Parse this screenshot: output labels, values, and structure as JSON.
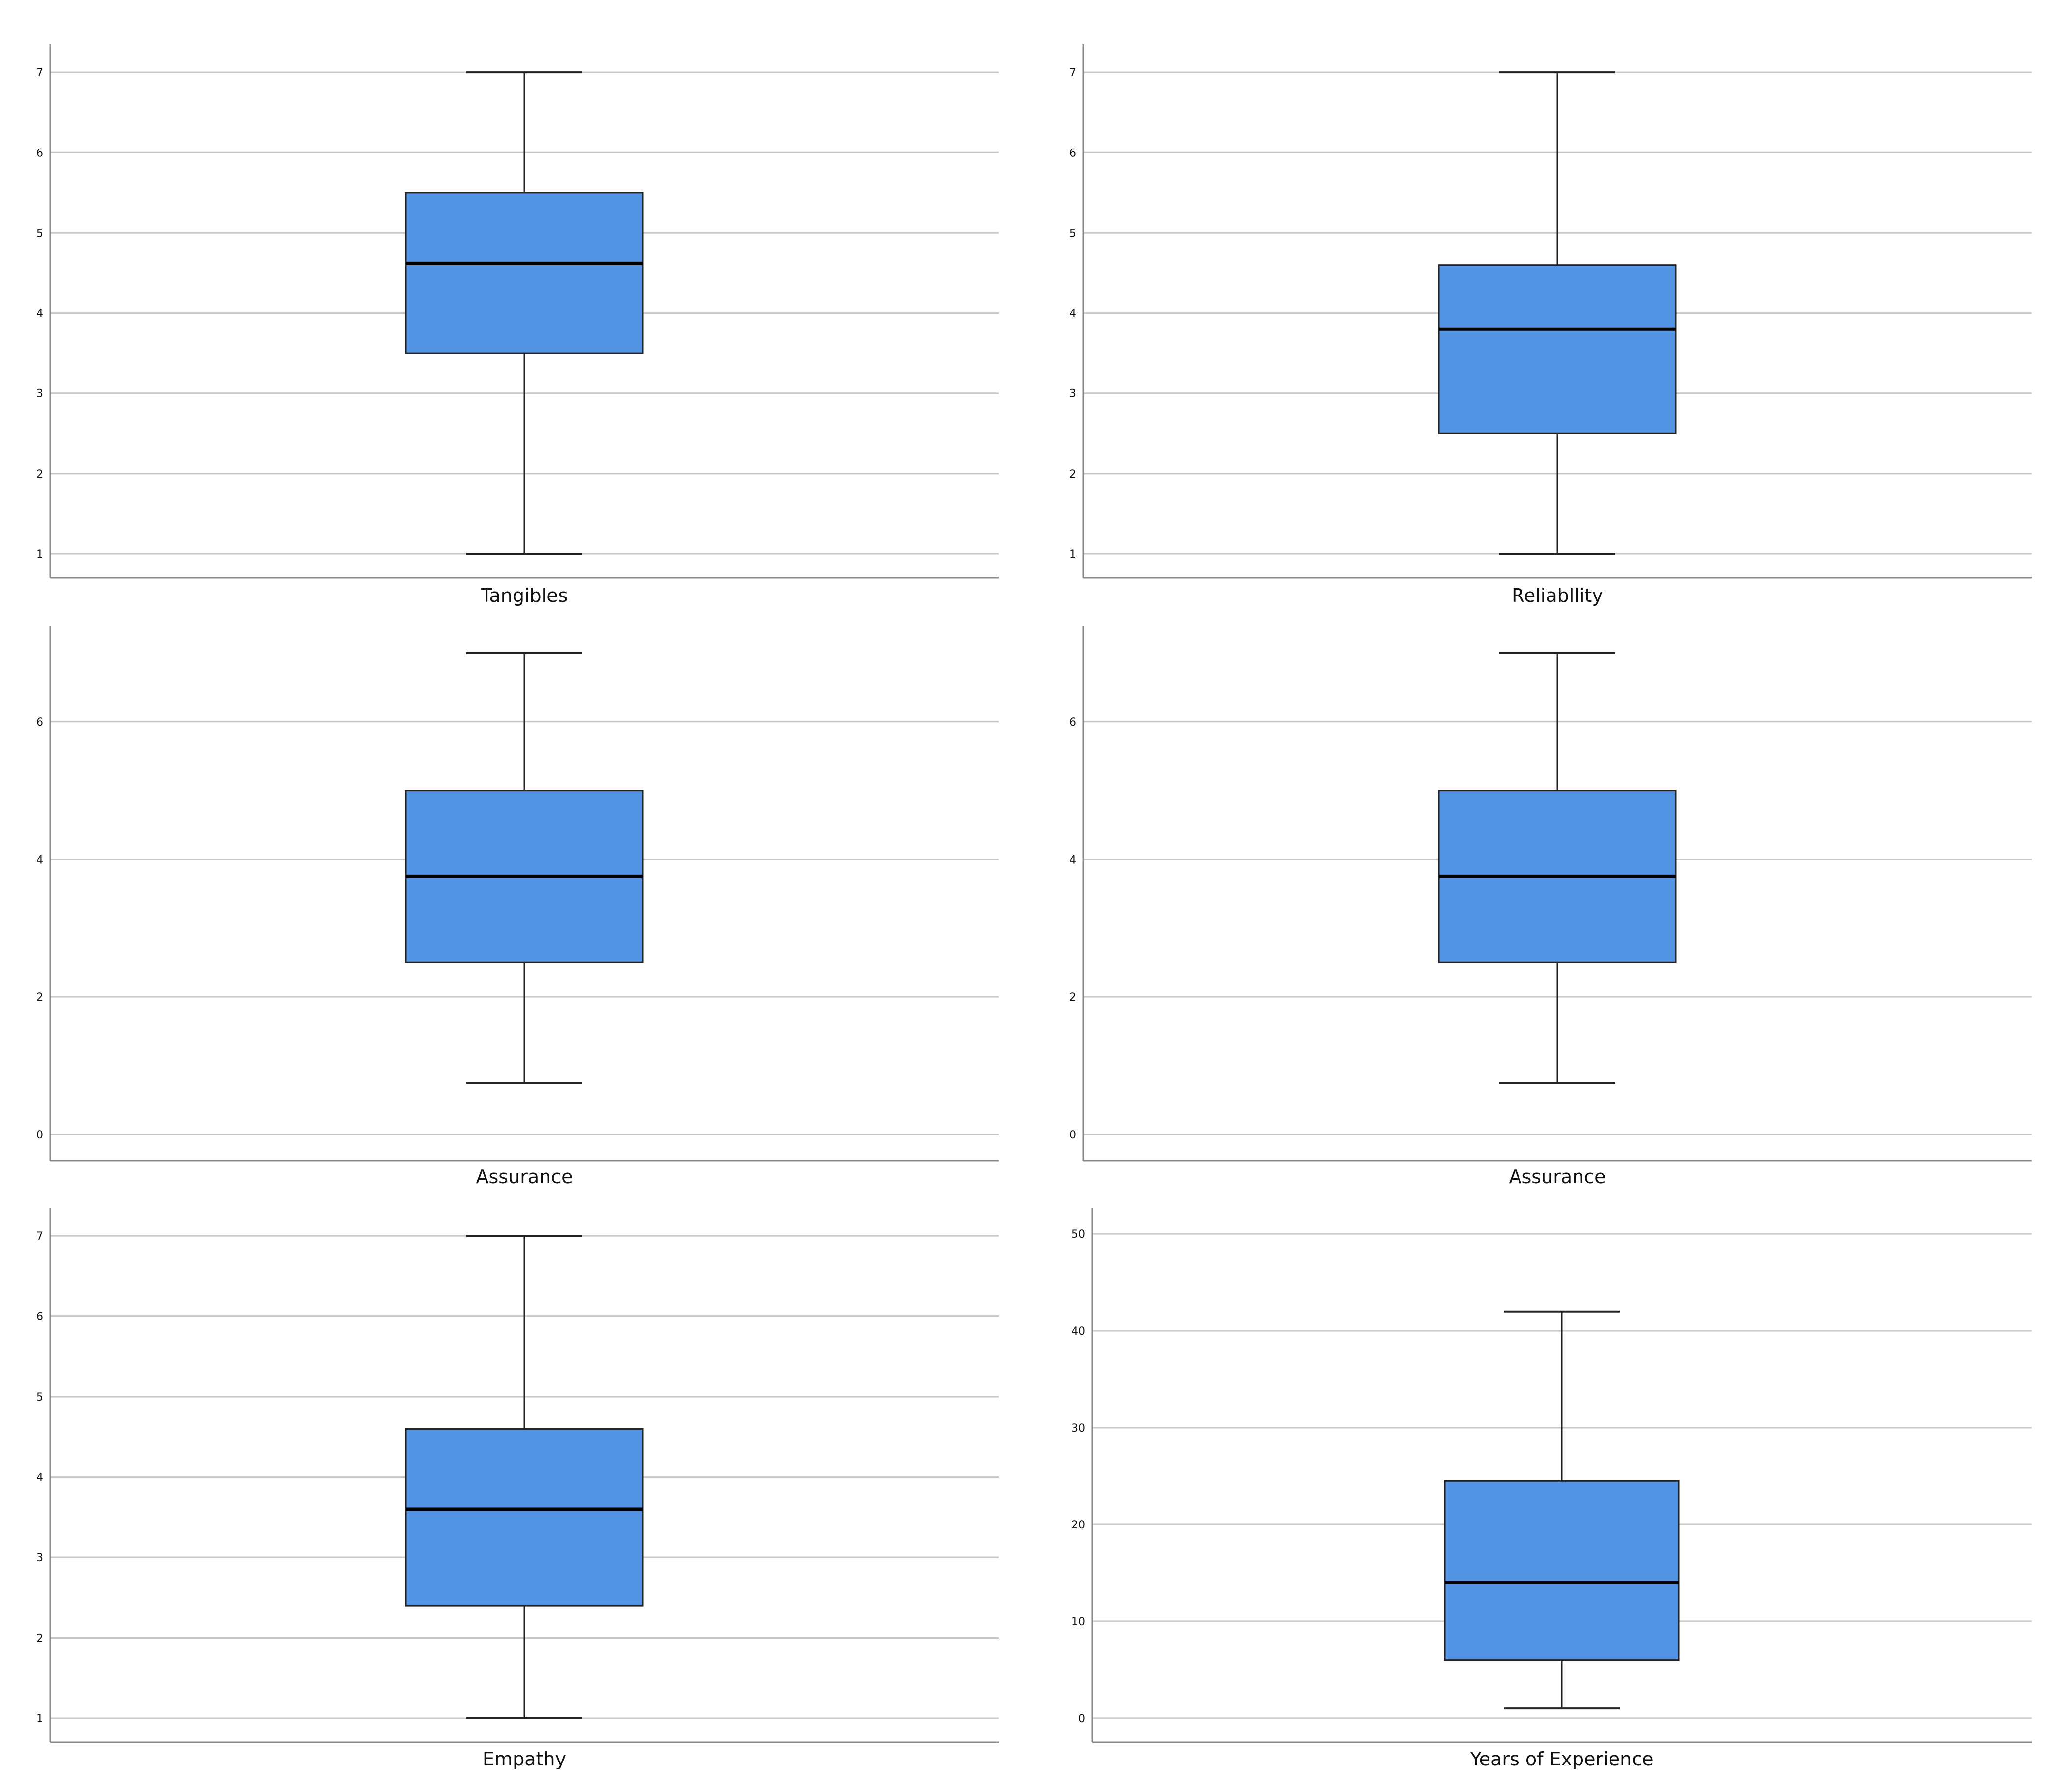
{
  "colors": {
    "box_fill": "#5494e5",
    "box_stroke": "#222222",
    "grid": "#c8c8c8",
    "axis": "#888888"
  },
  "chart_data": [
    {
      "type": "box",
      "xlabel": "Tangibles",
      "ylim": [
        0.7,
        7.35
      ],
      "yticks": [
        1,
        2,
        3,
        4,
        5,
        6,
        7
      ],
      "grid": true,
      "box": {
        "whisker_low": 1,
        "q1": 3.5,
        "median": 4.62,
        "q3": 5.5,
        "whisker_high": 7
      }
    },
    {
      "type": "box",
      "xlabel": "Reliabllity",
      "ylim": [
        0.7,
        7.35
      ],
      "yticks": [
        1,
        2,
        3,
        4,
        5,
        6,
        7
      ],
      "grid": true,
      "box": {
        "whisker_low": 1,
        "q1": 2.5,
        "median": 3.8,
        "q3": 4.6,
        "whisker_high": 7
      }
    },
    {
      "type": "box",
      "xlabel": "Assurance",
      "ylim": [
        -0.38,
        7.4
      ],
      "yticks": [
        0,
        2,
        4,
        6
      ],
      "grid": true,
      "box": {
        "whisker_low": 0.75,
        "q1": 2.5,
        "median": 3.75,
        "q3": 5,
        "whisker_high": 7
      }
    },
    {
      "type": "box",
      "xlabel": "Assurance",
      "ylim": [
        -0.38,
        7.4
      ],
      "yticks": [
        0,
        2,
        4,
        6
      ],
      "grid": true,
      "box": {
        "whisker_low": 0.75,
        "q1": 2.5,
        "median": 3.75,
        "q3": 5,
        "whisker_high": 7
      }
    },
    {
      "type": "box",
      "xlabel": "Empathy",
      "ylim": [
        0.7,
        7.35
      ],
      "yticks": [
        1,
        2,
        3,
        4,
        5,
        6,
        7
      ],
      "grid": true,
      "box": {
        "whisker_low": 1,
        "q1": 2.4,
        "median": 3.6,
        "q3": 4.6,
        "whisker_high": 7
      }
    },
    {
      "type": "box",
      "xlabel": "Years of Experience",
      "ylim": [
        -2.5,
        52.7
      ],
      "yticks": [
        0,
        10,
        20,
        30,
        40,
        50
      ],
      "grid": true,
      "box": {
        "whisker_low": 1,
        "q1": 6,
        "median": 14,
        "q3": 24.5,
        "whisker_high": 42
      }
    }
  ]
}
